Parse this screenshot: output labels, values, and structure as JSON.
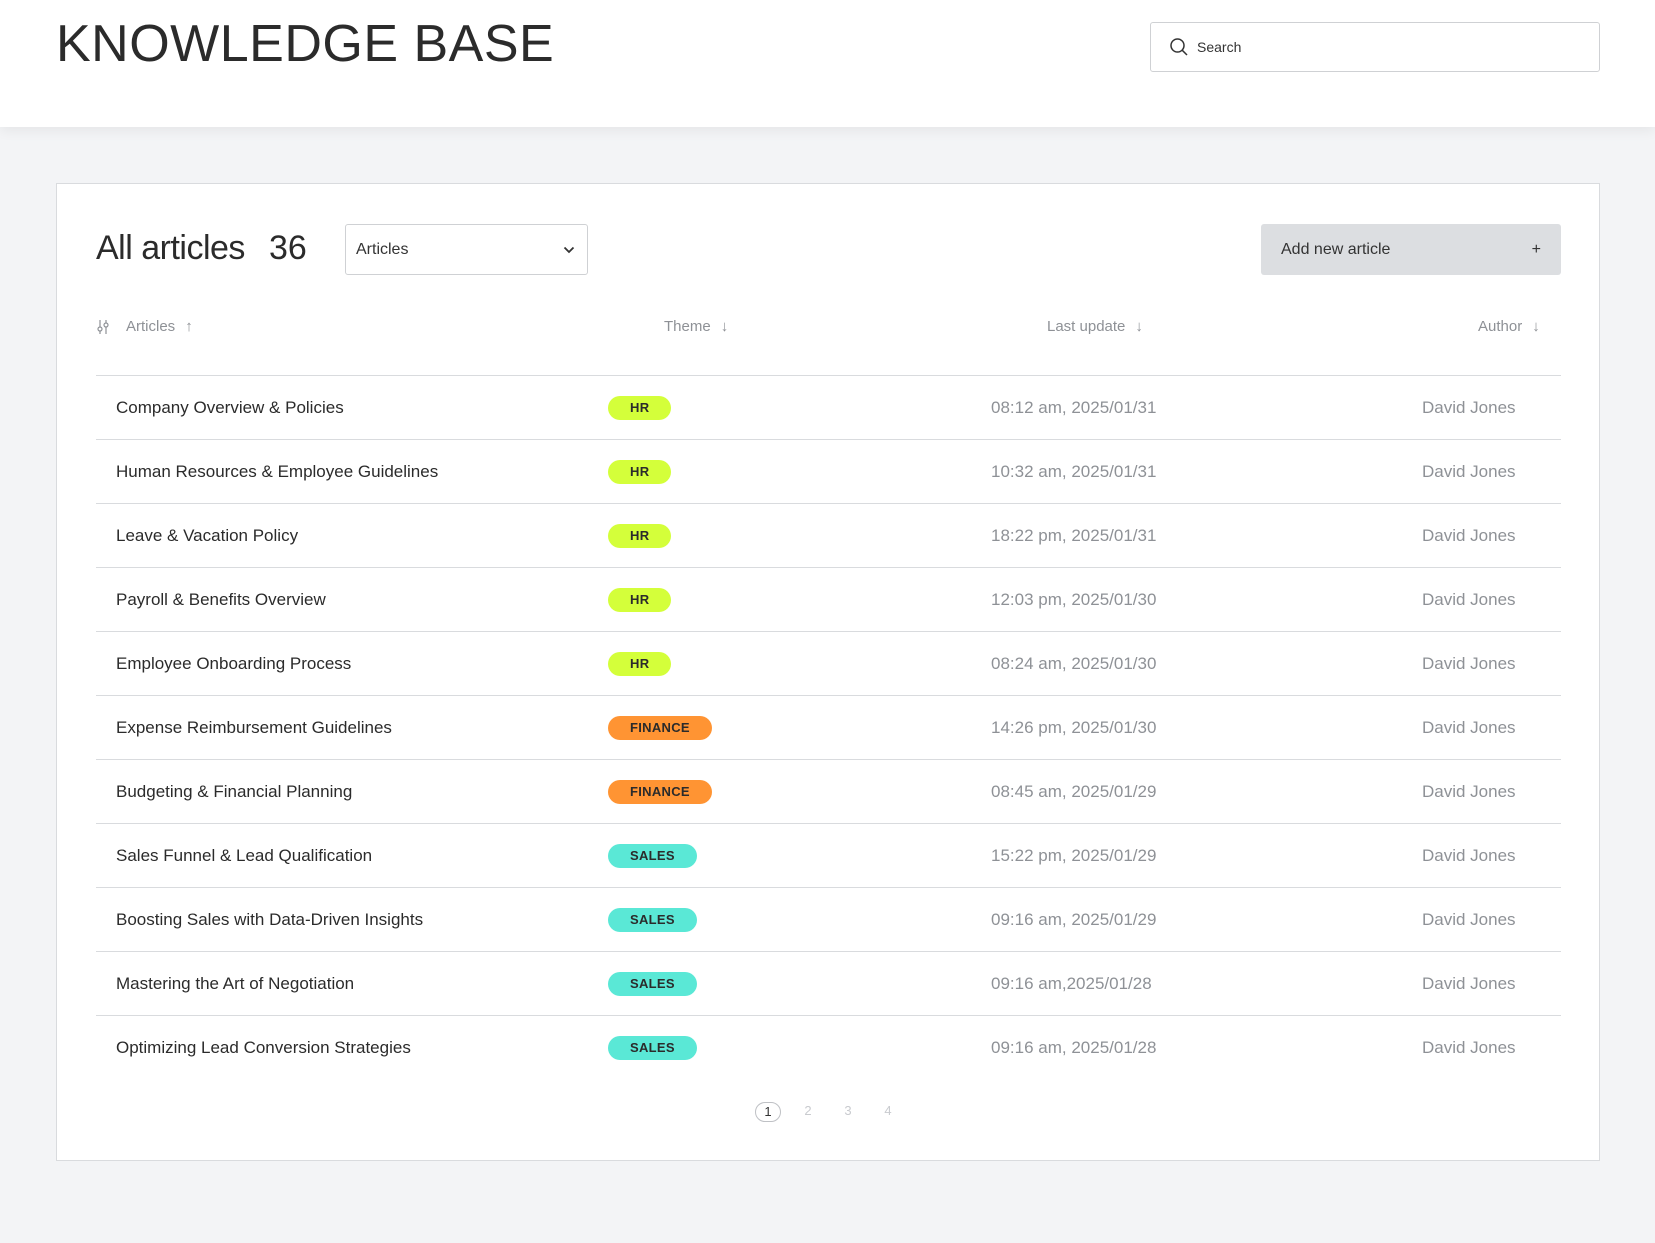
{
  "header": {
    "title": "KNOWLEDGE BASE",
    "search_placeholder": "Search"
  },
  "toolbar": {
    "heading": "All articles",
    "count": "36",
    "filter_value": "Articles",
    "add_label": "Add new article",
    "add_icon": "+"
  },
  "columns": [
    {
      "label": "Articles",
      "sort": "asc"
    },
    {
      "label": "Theme",
      "sort": "desc"
    },
    {
      "label": "Last update",
      "sort": "desc"
    },
    {
      "label": "Author",
      "sort": "desc"
    }
  ],
  "theme_colors": {
    "HR": "#d4ff3a",
    "FINANCE": "#ff9433",
    "SALES": "#5ae8d6"
  },
  "articles": [
    {
      "title": "Company Overview & Policies",
      "theme": "HR",
      "updated": "08:12 am, 2025/01/31",
      "author": "David Jones"
    },
    {
      "title": "Human Resources & Employee Guidelines",
      "theme": "HR",
      "updated": "10:32 am, 2025/01/31",
      "author": "David Jones"
    },
    {
      "title": "Leave & Vacation Policy",
      "theme": "HR",
      "updated": "18:22 pm, 2025/01/31",
      "author": "David Jones"
    },
    {
      "title": "Payroll & Benefits Overview",
      "theme": "HR",
      "updated": "12:03 pm, 2025/01/30",
      "author": "David Jones"
    },
    {
      "title": "Employee Onboarding Process",
      "theme": "HR",
      "updated": "08:24 am, 2025/01/30",
      "author": "David Jones"
    },
    {
      "title": "Expense Reimbursement Guidelines",
      "theme": "FINANCE",
      "updated": "14:26 pm, 2025/01/30",
      "author": "David Jones"
    },
    {
      "title": "Budgeting & Financial Planning",
      "theme": "FINANCE",
      "updated": "08:45 am, 2025/01/29",
      "author": "David Jones"
    },
    {
      "title": "Sales Funnel & Lead Qualification",
      "theme": "SALES",
      "updated": "15:22 pm, 2025/01/29",
      "author": "David Jones"
    },
    {
      "title": "Boosting Sales with Data-Driven Insights",
      "theme": "SALES",
      "updated": "09:16 am, 2025/01/29",
      "author": "David Jones"
    },
    {
      "title": "Mastering the Art of Negotiation",
      "theme": "SALES",
      "updated": "09:16 am,2025/01/28",
      "author": "David Jones"
    },
    {
      "title": "Optimizing Lead Conversion Strategies",
      "theme": "SALES",
      "updated": "09:16 am, 2025/01/28",
      "author": "David Jones"
    }
  ],
  "pagination": {
    "current": 1,
    "pages": [
      "1",
      "2",
      "3",
      "4"
    ]
  }
}
